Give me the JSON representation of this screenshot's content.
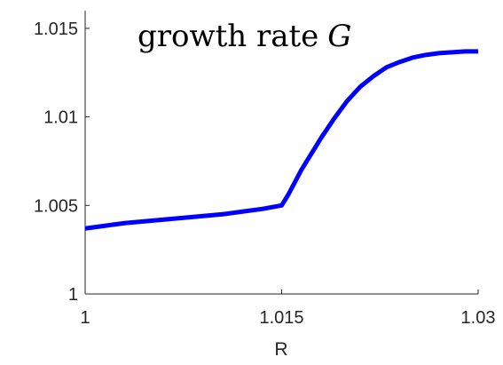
{
  "chart_data": {
    "type": "line",
    "title_text": "growth rate",
    "title_symbol": "G",
    "xlabel": "R",
    "ylabel": "",
    "xlim": [
      1.0,
      1.03
    ],
    "ylim": [
      1.0,
      1.016
    ],
    "x_ticks": [
      1.0,
      1.015,
      1.03
    ],
    "x_tick_labels": [
      "1",
      "1.015",
      "1.03"
    ],
    "y_ticks": [
      1.0,
      1.005,
      1.01,
      1.015
    ],
    "y_tick_labels": [
      "1",
      "1.005",
      "1.01",
      "1.015"
    ],
    "grid": false,
    "legend": "none",
    "series": [
      {
        "color": "#0000ff",
        "x": [
          1.0,
          1.0015,
          1.003,
          1.0045,
          1.006,
          1.0075,
          1.009,
          1.0105,
          1.012,
          1.0135,
          1.015,
          1.0155,
          1.016,
          1.0165,
          1.017,
          1.0175,
          1.018,
          1.019,
          1.02,
          1.021,
          1.022,
          1.023,
          1.024,
          1.025,
          1.026,
          1.027,
          1.028,
          1.029,
          1.03
        ],
        "values": [
          1.0037,
          1.00385,
          1.004,
          1.0041,
          1.0042,
          1.0043,
          1.0044,
          1.0045,
          1.00465,
          1.0048,
          1.005,
          1.0056,
          1.0063,
          1.007,
          1.0076,
          1.0082,
          1.0088,
          1.0099,
          1.0109,
          1.0117,
          1.0123,
          1.0128,
          1.0131,
          1.01335,
          1.0135,
          1.0136,
          1.01365,
          1.0137,
          1.0137
        ]
      }
    ]
  }
}
